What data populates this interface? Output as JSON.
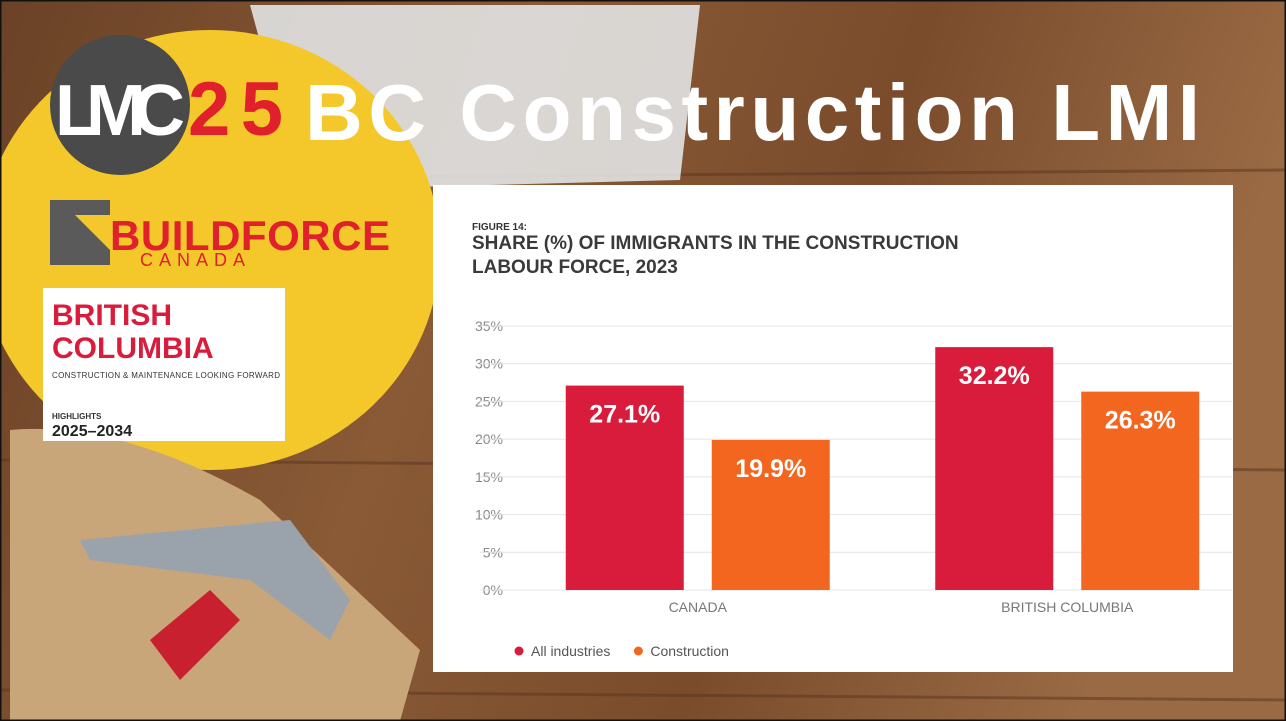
{
  "slide": {
    "logo": {
      "left": "LMC",
      "right": "25"
    },
    "title": "BC Construction LMI",
    "buildforce": {
      "name": "BUILDFORCE",
      "country": "CANADA"
    },
    "report": {
      "line1": "BRITISH",
      "line2": "COLUMBIA",
      "subtitle": "CONSTRUCTION & MAINTENANCE LOOKING FORWARD",
      "label": "HIGHLIGHTS",
      "years": "2025–2034"
    }
  },
  "chart_data": {
    "type": "bar",
    "figure": "FIGURE 14:",
    "title": [
      "SHARE (%) OF IMMIGRANTS IN THE CONSTRUCTION",
      "LABOUR FORCE, 2023"
    ],
    "categories": [
      "CANADA",
      "BRITISH COLUMBIA"
    ],
    "series": [
      {
        "name": "All industries",
        "color": "#d91c3c",
        "values": [
          27.1,
          32.2
        ],
        "value_labels": [
          "27.1%",
          "32.2%"
        ]
      },
      {
        "name": "Construction",
        "color": "#f2661f",
        "values": [
          19.9,
          26.3
        ],
        "value_labels": [
          "19.9%",
          "26.3%"
        ]
      }
    ],
    "ylim": [
      0,
      35
    ],
    "yticks": [
      {
        "value": 0,
        "label": "0%"
      },
      {
        "value": 5,
        "label": "5%"
      },
      {
        "value": 10,
        "label": "10%"
      },
      {
        "value": 15,
        "label": "15%"
      },
      {
        "value": 20,
        "label": "20%"
      },
      {
        "value": 25,
        "label": "25%"
      },
      {
        "value": 30,
        "label": "30%"
      },
      {
        "value": 35,
        "label": "35%"
      }
    ],
    "grid": true,
    "legend": "bottom"
  }
}
